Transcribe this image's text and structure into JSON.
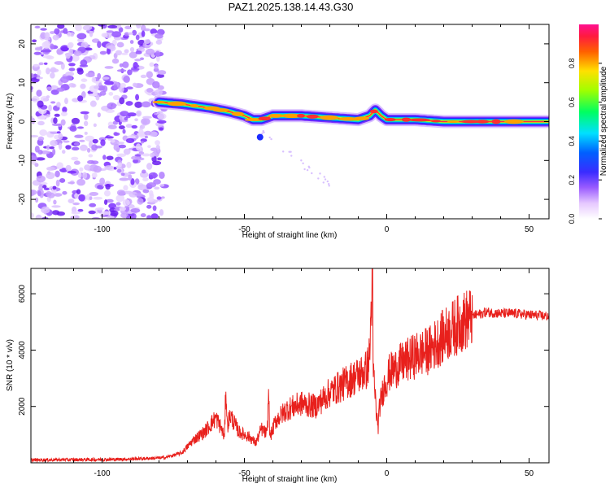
{
  "title": "PAZ1.2025.138.14.43.G30",
  "colorbar": {
    "label": "Normalized spectral amplitude",
    "ticks": [
      0.0,
      0.2,
      0.4,
      0.6,
      0.8
    ],
    "tick_labels": [
      "0.0",
      "0.2",
      "0.4",
      "0.6",
      "0.8"
    ],
    "range": [
      0,
      1
    ]
  },
  "chart_data": [
    {
      "type": "heatmap",
      "xlabel": "Height of straight line (km)",
      "ylabel": "Frequency (Hz)",
      "xlim": [
        -125,
        57
      ],
      "ylim": [
        -25,
        25
      ],
      "xticks": [
        -100,
        -50,
        0,
        50
      ],
      "xtick_labels": [
        "-100",
        "-50",
        "0",
        "50"
      ],
      "yticks": [
        -20,
        -10,
        0,
        10,
        20
      ],
      "ytick_labels": [
        "-20",
        "-10",
        "0",
        "10",
        "20"
      ],
      "ridge_line": {
        "x": [
          -80,
          -72,
          -62,
          -55,
          -50,
          -47,
          -44,
          -40,
          -30,
          -20,
          -10,
          -6,
          -4,
          -2,
          0,
          10,
          20,
          30,
          40,
          57
        ],
        "y": [
          5,
          4.5,
          3.5,
          2.5,
          1.5,
          0.5,
          0.5,
          1.5,
          1.5,
          1,
          0.5,
          1.5,
          3,
          1.5,
          0.5,
          0.5,
          0,
          0,
          0,
          0
        ]
      },
      "noise_region": {
        "x_range": [
          -125,
          -78
        ],
        "description_level": "low"
      }
    },
    {
      "type": "line",
      "xlabel": "Height of straight line (km)",
      "ylabel": "SNR (10 * v/v)",
      "xlim": [
        -125,
        57
      ],
      "ylim": [
        0,
        6900
      ],
      "xticks": [
        -100,
        -50,
        0,
        50
      ],
      "xtick_labels": [
        "-100",
        "-50",
        "0",
        "50"
      ],
      "yticks": [
        2000,
        4000,
        6000
      ],
      "ytick_labels": [
        "2000",
        "4000",
        "6000"
      ],
      "color": "#e8201c",
      "series": [
        {
          "x": [
            -125,
            -110,
            -95,
            -85,
            -78,
            -72,
            -68,
            -64,
            -60,
            -58,
            -57,
            -56.5,
            -56,
            -55,
            -52,
            -48,
            -46,
            -44,
            -42,
            -41.5,
            -41,
            -39,
            -35,
            -30,
            -25,
            -20,
            -15,
            -12,
            -10,
            -7,
            -6,
            -5,
            -4.8,
            -4.5,
            -4,
            -3.5,
            -3,
            -2.5,
            -1,
            1,
            5,
            10,
            15,
            20,
            25,
            30,
            35,
            40,
            45,
            50,
            57
          ],
          "y": [
            100,
            110,
            120,
            150,
            180,
            350,
            800,
            1100,
            1600,
            1200,
            900,
            2700,
            1300,
            1700,
            1100,
            900,
            700,
            1200,
            1000,
            2500,
            900,
            1500,
            1900,
            2100,
            2000,
            2500,
            2800,
            3000,
            3100,
            3300,
            3800,
            6900,
            3400,
            3000,
            2300,
            1600,
            1300,
            2000,
            2700,
            3200,
            3500,
            3800,
            4000,
            4500,
            4900,
            5200,
            5350,
            5300,
            5300,
            5250,
            5200
          ]
        }
      ]
    }
  ]
}
